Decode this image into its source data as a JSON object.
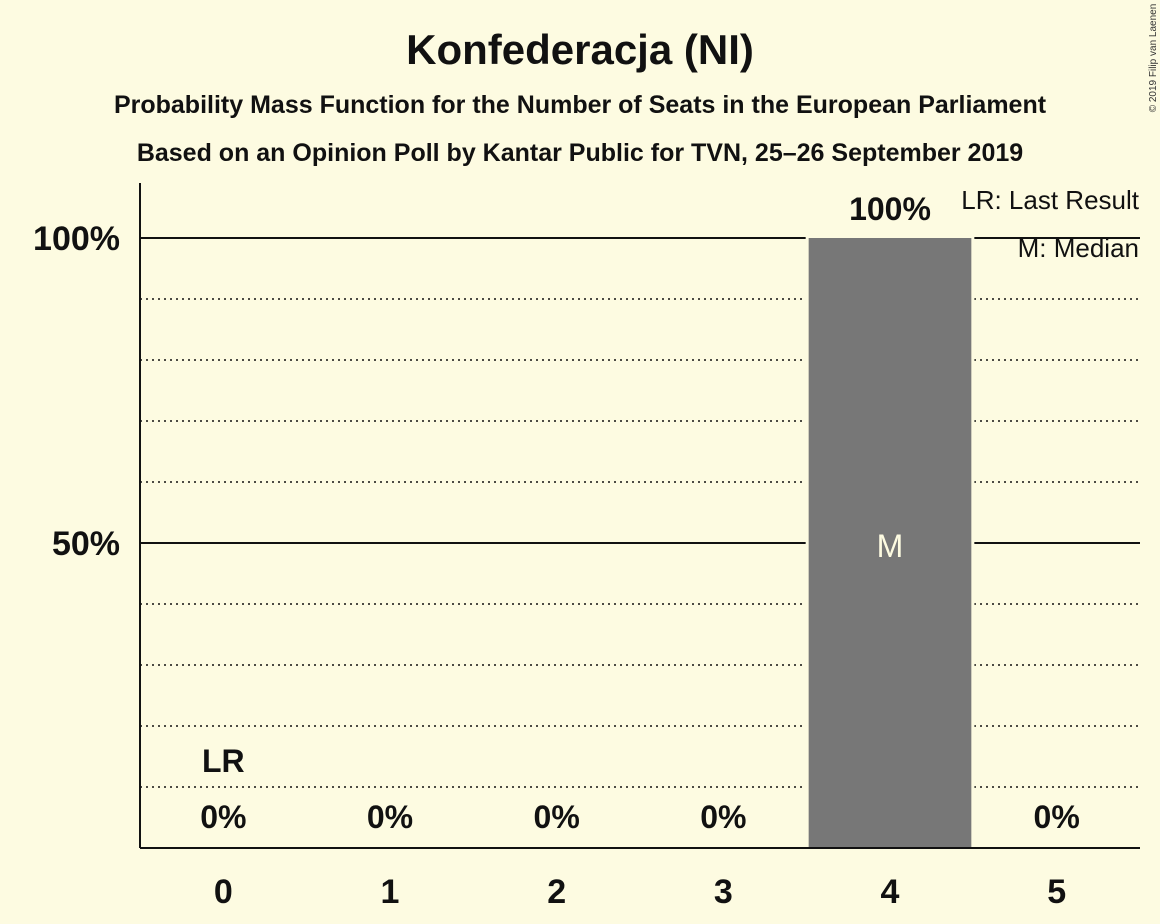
{
  "chart_data": {
    "type": "bar",
    "title": "Konfederacja (NI)",
    "subtitle_lines": [
      "Probability Mass Function for the Number of Seats in the European Parliament",
      "Based on an Opinion Poll by Kantar Public for TVN, 25–26 September 2019"
    ],
    "categories": [
      "0",
      "1",
      "2",
      "3",
      "4",
      "5"
    ],
    "values": [
      0,
      0,
      0,
      0,
      100,
      0
    ],
    "value_labels": [
      "0%",
      "0%",
      "0%",
      "0%",
      "100%",
      "0%"
    ],
    "y_ticks": [
      {
        "value": 50,
        "label": "50%"
      },
      {
        "value": 100,
        "label": "100%"
      }
    ],
    "ylim": [
      0,
      110
    ],
    "minor_gridlines": [
      10,
      20,
      30,
      40,
      60,
      70,
      80,
      90
    ],
    "last_result": {
      "category": "0",
      "marker": "LR"
    },
    "median": {
      "category": "4",
      "marker": "M"
    },
    "legend": [
      "LR: Last Result",
      "M: Median"
    ],
    "legend_position": "top-right",
    "bar_color": "#777777",
    "copyright": "© 2019 Filip van Laenen"
  }
}
